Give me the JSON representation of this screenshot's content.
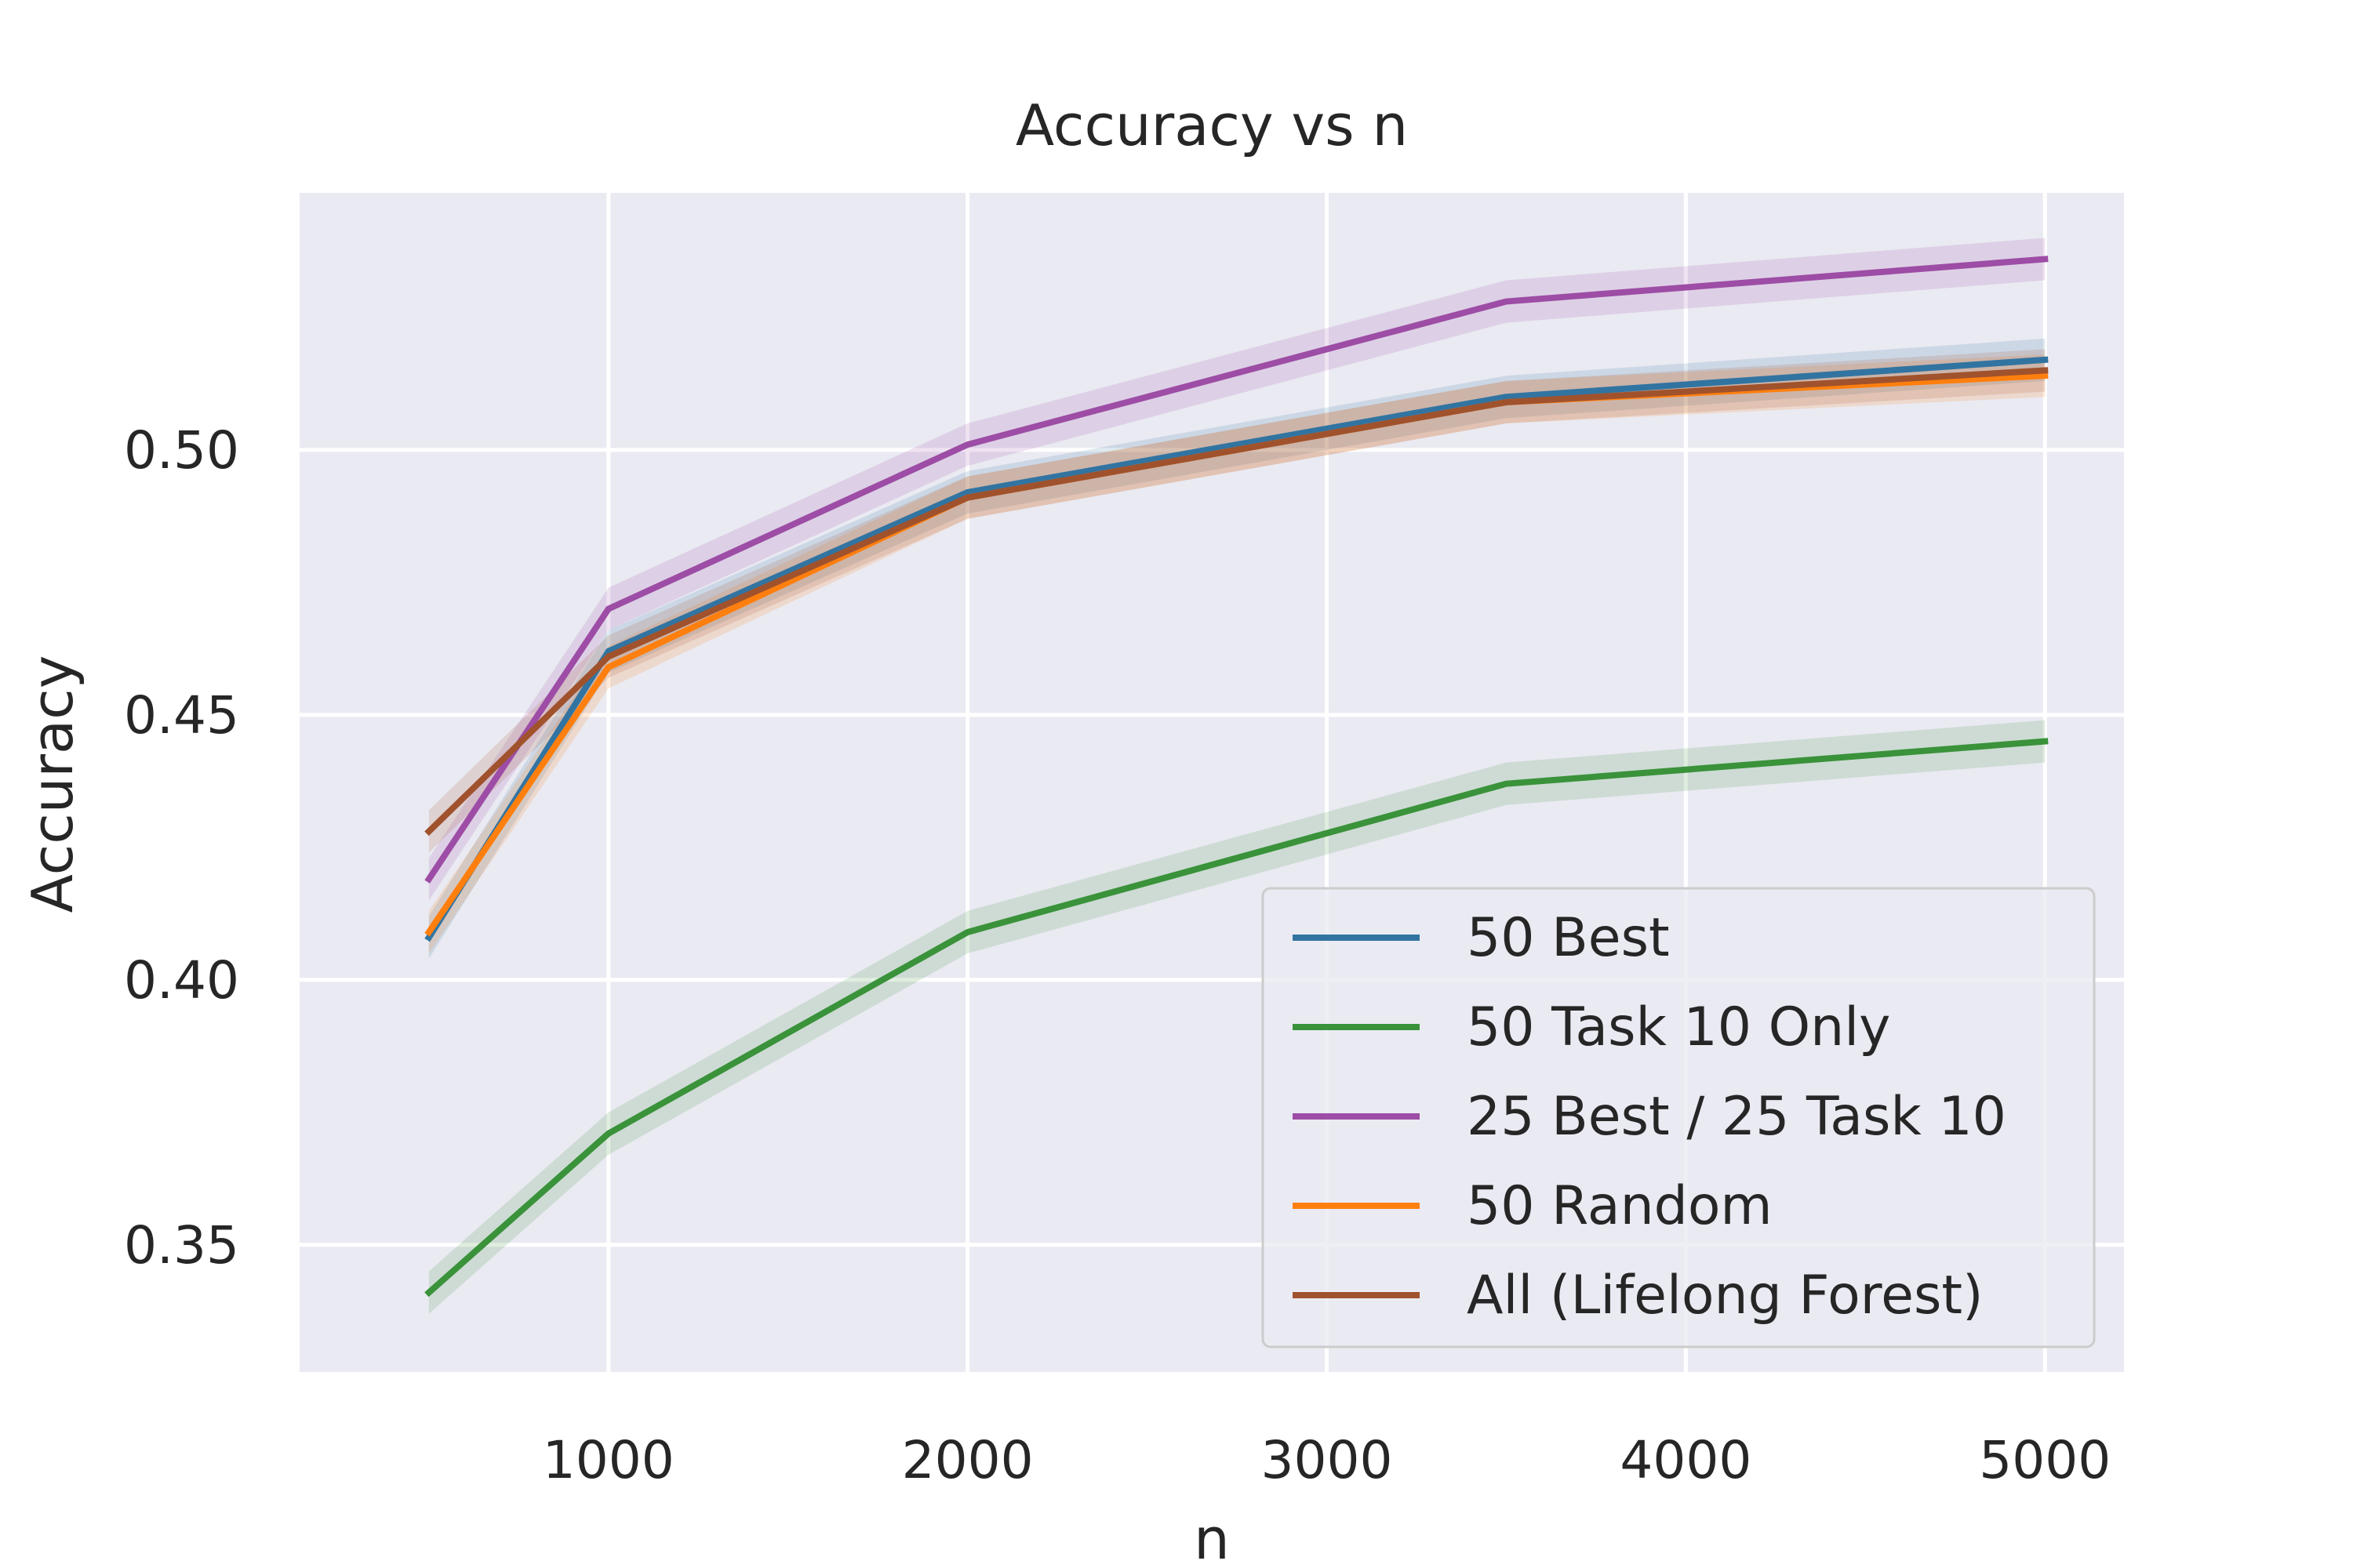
{
  "chart_data": {
    "type": "line",
    "title": "Accuracy vs n",
    "xlabel": "n",
    "ylabel": "Accuracy",
    "xlim": [
      140,
      5220
    ],
    "ylim": [
      0.326,
      0.5485
    ],
    "xticks": [
      1000,
      2000,
      3000,
      4000,
      5000
    ],
    "xtick_labels": [
      "1000",
      "2000",
      "3000",
      "4000",
      "5000"
    ],
    "yticks": [
      0.35,
      0.4,
      0.45,
      0.5
    ],
    "ytick_labels": [
      "0.35",
      "0.40",
      "0.45",
      "0.50"
    ],
    "grid": true,
    "legend_position": "lower-right",
    "background": "#eaeaf2",
    "band_halfwidth": 0.004,
    "x": [
      500,
      1000,
      2000,
      3500,
      5000
    ],
    "series": [
      {
        "name": "50 Best",
        "color": "#3274a1",
        "values": [
          0.408,
          0.462,
          0.492,
          0.51,
          0.517
        ]
      },
      {
        "name": "50 Task 10 Only",
        "color": "#3a923a",
        "values": [
          0.341,
          0.371,
          0.409,
          0.437,
          0.445
        ]
      },
      {
        "name": "25 Best / 25 Task 10",
        "color": "#9d4da5",
        "values": [
          0.419,
          0.47,
          0.501,
          0.528,
          0.536
        ]
      },
      {
        "name": "50 Random",
        "color": "#ff7f0e",
        "values": [
          0.409,
          0.459,
          0.491,
          0.509,
          0.514
        ]
      },
      {
        "name": "All (Lifelong Forest)",
        "color": "#a0522d",
        "values": [
          0.428,
          0.461,
          0.491,
          0.509,
          0.515
        ]
      }
    ]
  }
}
